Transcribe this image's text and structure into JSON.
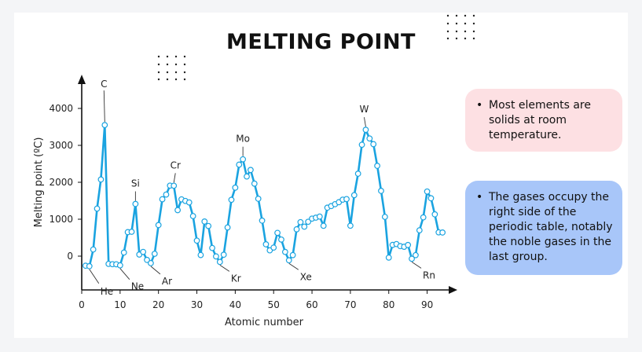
{
  "title": "MELTING POINT",
  "notes": [
    {
      "text": "Most elements are solids at room temperature.",
      "color": "#fde0e3"
    },
    {
      "text": "The gases occupy the right side of the periodic table, notably the noble gases in the last group.",
      "color": "#a8c6f9"
    }
  ],
  "colors": {
    "line": "#1aa3e0",
    "marker_fill": "#ffffff",
    "marker_stroke": "#1aa3e0",
    "background": "#ffffff"
  },
  "chart_data": {
    "type": "line",
    "xlabel": "Atomic number",
    "ylabel": "Melting point (ºC)",
    "xlim": [
      0,
      95
    ],
    "ylim": [
      -1000,
      4700
    ],
    "xticks": [
      0,
      10,
      20,
      30,
      40,
      50,
      60,
      70,
      80,
      90
    ],
    "yticks": [
      0,
      1000,
      2000,
      3000,
      4000
    ],
    "grid": false,
    "series": [
      {
        "x": [
          1,
          2,
          3,
          4,
          5,
          6,
          7,
          8,
          9,
          10,
          11,
          12,
          13,
          14,
          15,
          16,
          17,
          18,
          19,
          20,
          21,
          22,
          23,
          24,
          25,
          26,
          27,
          28,
          29,
          30,
          31,
          32,
          33,
          34,
          35,
          36,
          37,
          38,
          39,
          40,
          41,
          42,
          43,
          44,
          45,
          46,
          47,
          48,
          49,
          50,
          51,
          52,
          53,
          54,
          55,
          56,
          57,
          58,
          59,
          60,
          61,
          62,
          63,
          64,
          65,
          66,
          67,
          68,
          69,
          70,
          71,
          72,
          73,
          74,
          75,
          76,
          77,
          78,
          79,
          80,
          81,
          82,
          83,
          84,
          85,
          86,
          87,
          88,
          89,
          90,
          91,
          92,
          93,
          94
        ],
        "y": [
          -259,
          -272,
          181,
          1287,
          2076,
          3550,
          -210,
          -218,
          -220,
          -249,
          98,
          650,
          660,
          1414,
          44,
          115,
          -102,
          -189,
          64,
          842,
          1541,
          1668,
          1910,
          1907,
          1246,
          1538,
          1495,
          1455,
          1085,
          420,
          30,
          938,
          817,
          221,
          -7,
          -157,
          39,
          777,
          1526,
          1855,
          2477,
          2623,
          2157,
          2334,
          1964,
          1555,
          962,
          321,
          157,
          232,
          631,
          450,
          114,
          -112,
          28,
          727,
          920,
          798,
          931,
          1016,
          1042,
          1072,
          822,
          1313,
          1356,
          1407,
          1461,
          1529,
          1545,
          824,
          1652,
          2233,
          3017,
          3422,
          3186,
          3033,
          2446,
          1768,
          1064,
          -39,
          304,
          327,
          271,
          254,
          302,
          -71,
          27,
          700,
          1050,
          1750,
          1568,
          1132,
          644,
          640
        ]
      }
    ],
    "annotations": [
      {
        "label": "C",
        "x": 6,
        "y": 3550
      },
      {
        "label": "Si",
        "x": 14,
        "y": 1414
      },
      {
        "label": "Cr",
        "x": 24,
        "y": 1907
      },
      {
        "label": "Mo",
        "x": 42,
        "y": 2623
      },
      {
        "label": "W",
        "x": 74,
        "y": 3422
      },
      {
        "label": "He",
        "x": 2,
        "y": -272
      },
      {
        "label": "Ne",
        "x": 10,
        "y": -249
      },
      {
        "label": "Ar",
        "x": 18,
        "y": -189
      },
      {
        "label": "Kr",
        "x": 36,
        "y": -157
      },
      {
        "label": "Xe",
        "x": 54,
        "y": -112
      },
      {
        "label": "Rn",
        "x": 86,
        "y": -71
      }
    ]
  }
}
